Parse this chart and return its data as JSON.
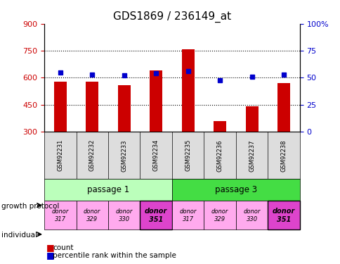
{
  "title": "GDS1869 / 236149_at",
  "samples": [
    "GSM92231",
    "GSM92232",
    "GSM92233",
    "GSM92234",
    "GSM92235",
    "GSM92236",
    "GSM92237",
    "GSM92238"
  ],
  "counts": [
    580,
    578,
    560,
    640,
    760,
    360,
    440,
    570
  ],
  "percentiles": [
    55,
    53,
    52,
    54,
    56,
    48,
    51,
    53
  ],
  "ymin": 300,
  "ymax": 900,
  "yticks": [
    300,
    450,
    600,
    750,
    900
  ],
  "right_yticks": [
    0,
    25,
    50,
    75,
    100
  ],
  "bar_color": "#cc0000",
  "dot_color": "#0000cc",
  "passage_labels": [
    "passage 1",
    "passage 3"
  ],
  "passage_ranges": [
    [
      0,
      3
    ],
    [
      4,
      7
    ]
  ],
  "passage_colors": [
    "#bbffbb",
    "#44dd44"
  ],
  "donors": [
    "donor\n317",
    "donor\n329",
    "donor\n330",
    "donor\n351",
    "donor\n317",
    "donor\n329",
    "donor\n330",
    "donor\n351"
  ],
  "donor_highlight": [
    false,
    false,
    false,
    true,
    false,
    false,
    false,
    true
  ],
  "donor_bg_normal": "#ffaaee",
  "donor_bg_highlight": "#dd44cc",
  "growth_protocol_label": "growth protocol",
  "individual_label": "individual",
  "legend_count": "count",
  "legend_percentile": "percentile rank within the sample",
  "title_fontsize": 11,
  "tick_fontsize": 8,
  "bar_width": 0.4
}
